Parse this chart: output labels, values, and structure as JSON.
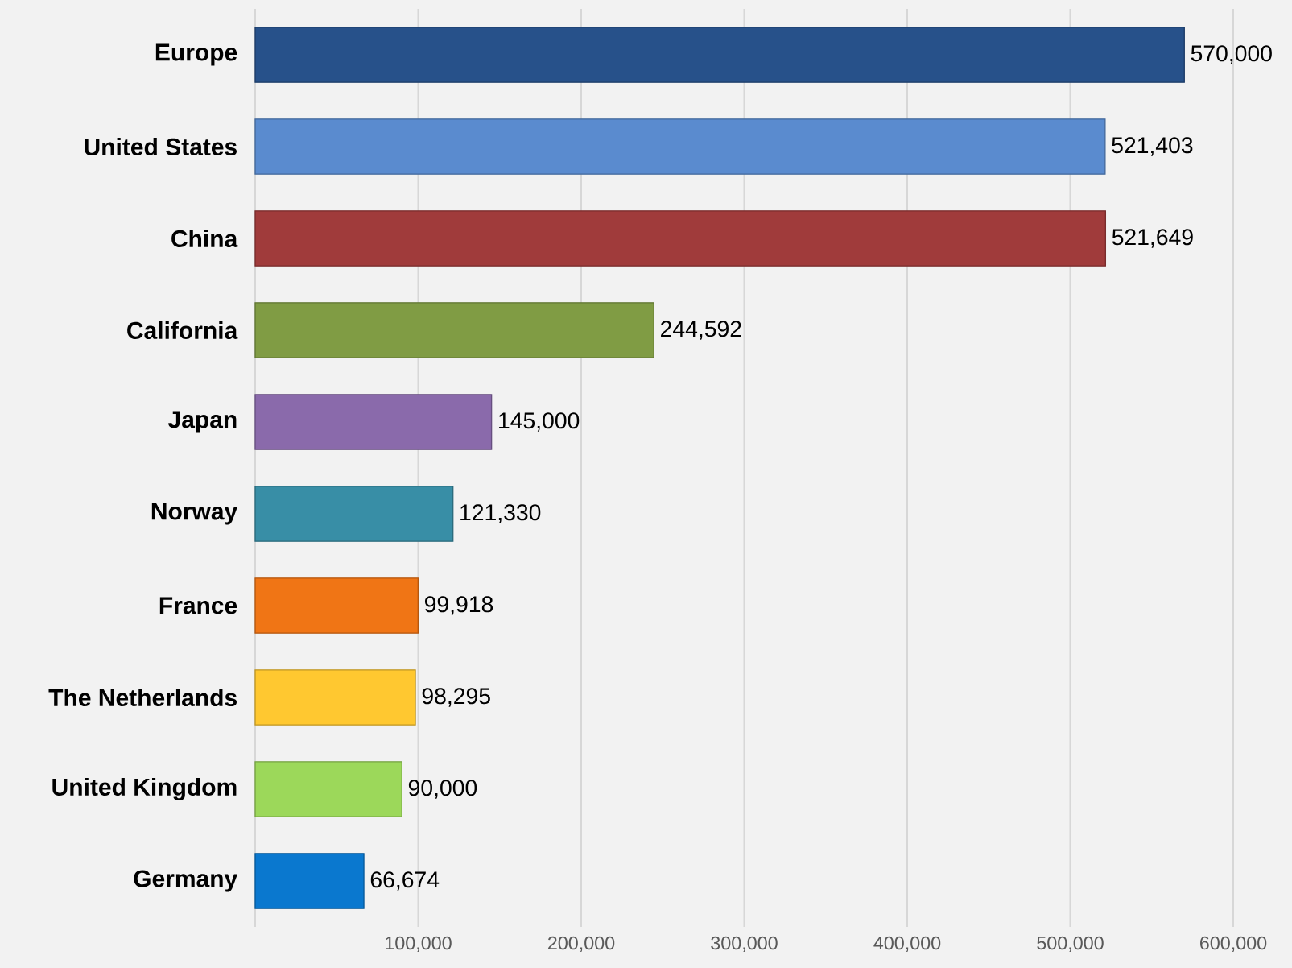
{
  "chart_data": {
    "type": "bar",
    "orientation": "horizontal",
    "categories": [
      "Europe",
      "United States",
      "China",
      "California",
      "Japan",
      "Norway",
      "France",
      "The Netherlands",
      "United Kingdom",
      "Germany"
    ],
    "values": [
      570000,
      521403,
      521649,
      244592,
      145000,
      121330,
      99918,
      98295,
      90000,
      66674
    ],
    "colors": [
      "#27518a",
      "#5a8bcf",
      "#a03b3b",
      "#809c44",
      "#8a6aab",
      "#388ea6",
      "#f07515",
      "#ffc830",
      "#9cd85a",
      "#0a78cf"
    ],
    "value_labels": [
      "570,000",
      "521,403",
      "521,649",
      "244,592",
      "145,000",
      "121,330",
      "99,918",
      "98,295",
      "90,000",
      "66,674"
    ],
    "xlim": [
      0,
      600000
    ],
    "xticks": [
      {
        "value": 0,
        "label": null
      },
      {
        "value": 100000,
        "label": "100,000"
      },
      {
        "value": 200000,
        "label": "200,000"
      },
      {
        "value": 300000,
        "label": "300,000"
      },
      {
        "value": 400000,
        "label": "400,000"
      },
      {
        "value": 500000,
        "label": "500,000"
      },
      {
        "value": 600000,
        "label": "600,000"
      }
    ],
    "grid": "x"
  }
}
